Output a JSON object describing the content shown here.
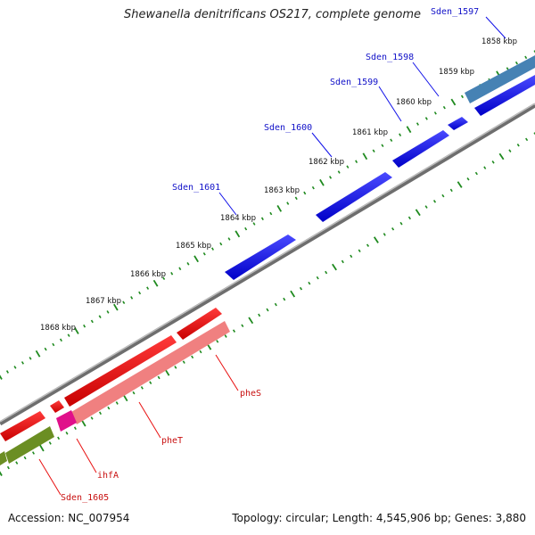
{
  "title": "Shewanella denitrificans OS217, complete genome",
  "accession": "Accession: NC_007954",
  "topology": "Topology: circular; Length: 4,545,906 bp; Genes: 3,880",
  "scale_ticks": [
    "1858 kbp",
    "1859 kbp",
    "1860 kbp",
    "1861 kbp",
    "1862 kbp",
    "1863 kbp",
    "1864 kbp",
    "1865 kbp",
    "1866 kbp",
    "1867 kbp",
    "1868 kbp"
  ],
  "genes": [
    {
      "label": "Sden_1597",
      "color": "#1010d0",
      "strand": "forward"
    },
    {
      "label": "Sden_1598",
      "color": "#1010d0",
      "strand": "forward"
    },
    {
      "label": "Sden_1599",
      "color": "#1010d0",
      "strand": "forward"
    },
    {
      "label": "Sden_1600",
      "color": "#1010d0",
      "strand": "forward"
    },
    {
      "label": "Sden_1601",
      "color": "#1010d0",
      "strand": "forward"
    },
    {
      "label": "pheS",
      "color": "#d01010",
      "strand": "reverse"
    },
    {
      "label": "pheT",
      "color": "#d01010",
      "strand": "reverse"
    },
    {
      "label": "ihfA",
      "color": "#d01010",
      "strand": "reverse"
    },
    {
      "label": "Sden_1605",
      "color": "#d01010",
      "strand": "reverse"
    }
  ],
  "colors": {
    "forward": "#1010e8",
    "reverse": "#e81010",
    "backbone": "#7a7a7a",
    "ticks": "#1f8a1f",
    "feature_pink": "#f08080",
    "feature_blue": "#4682b4",
    "feature_olive": "#6b8e23",
    "feature_magenta": "#e0108a"
  }
}
